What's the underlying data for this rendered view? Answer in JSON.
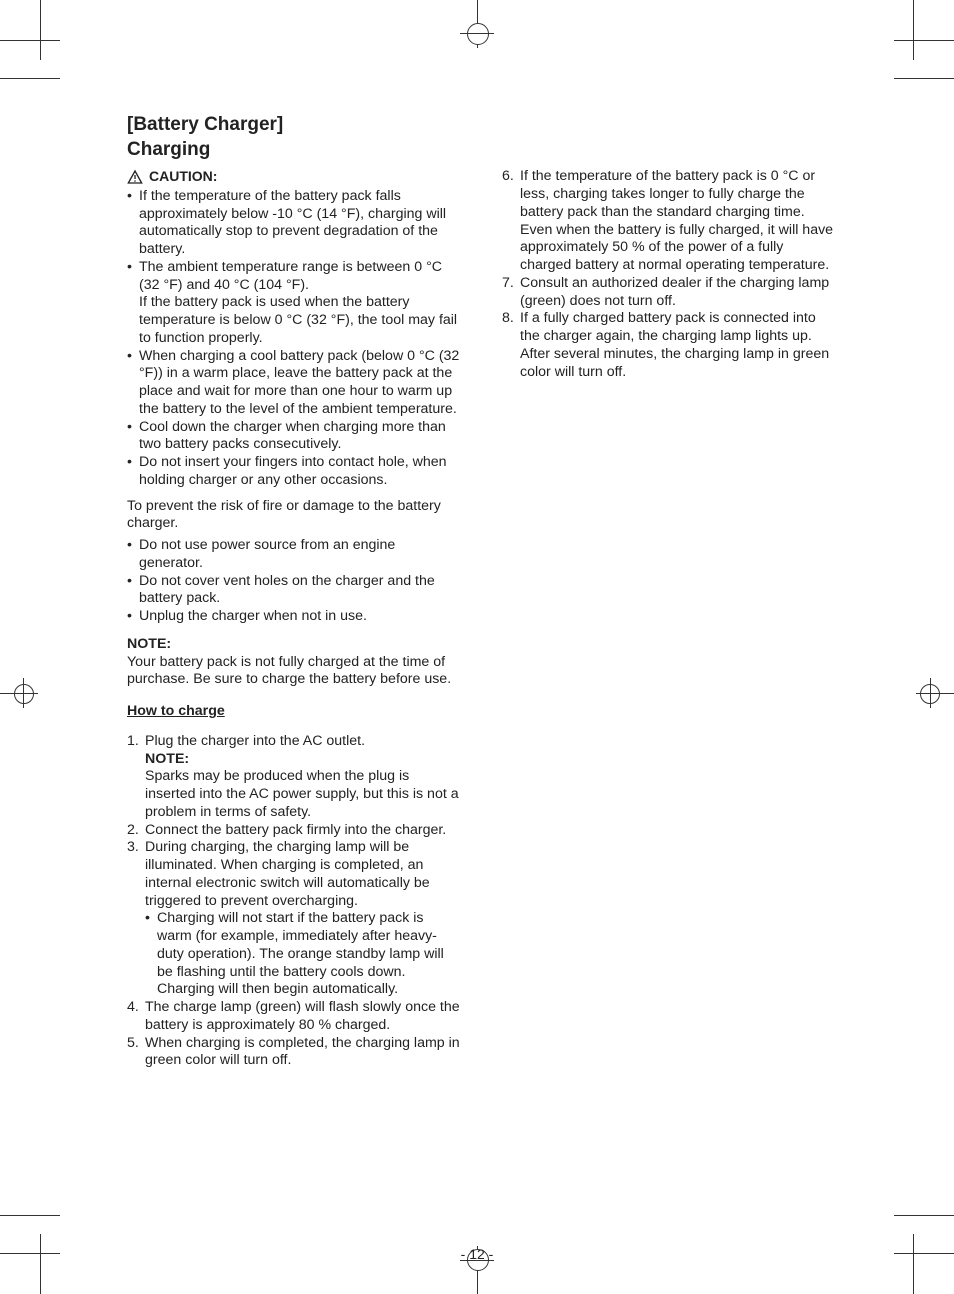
{
  "page_number": "- 12 -",
  "heading": "[Battery Charger]\nCharging",
  "caution_label": "CAUTION:",
  "caution_bullets": [
    "If the temperature of the battery pack falls approximately below -10 °C (14 °F), charging will automatically stop to prevent degradation of the battery.",
    "The ambient temperature range is between 0 °C (32 °F) and 40 °C (104 °F).\nIf the battery pack is used when the battery temperature is below 0 °C (32 °F), the tool may fail to function properly.",
    "When charging a cool battery pack (below 0 °C (32 °F)) in a warm place, leave the battery pack at the place and wait for more than one hour to warm up the battery to the level of the ambient temperature.",
    "Cool down the charger when charging more than two battery packs consecutively.",
    "Do not insert your fingers into contact hole, when holding charger or any other occasions."
  ],
  "prevent_intro": "To prevent the risk of fire or damage to the battery charger.",
  "prevent_bullets": [
    "Do not use power source from an engine generator.",
    "Do not cover vent holes on the charger and the battery pack.",
    "Unplug the charger when not in use."
  ],
  "note_label": "NOTE:",
  "note_body": "Your battery pack is not fully charged at the time of purchase. Be sure to charge the battery before use.",
  "howto_label": "How to charge",
  "steps_col1": [
    {
      "text": "Plug the charger into the AC outlet.",
      "note_label": "NOTE:",
      "note_body": "Sparks may be produced when the plug is inserted into the AC power supply, but this is not a problem in terms of safety."
    },
    {
      "text": "Connect the battery pack firmly into the charger."
    },
    {
      "text": "During charging, the charging lamp will be illuminated. When charging is completed, an internal electronic switch will automatically be triggered to prevent overcharging.",
      "sub": [
        "Charging will not start if the battery pack is warm (for example, immediately after heavy-duty operation). The orange standby lamp will be flashing until the battery cools down. Charging will then begin automatically."
      ]
    },
    {
      "text": "The charge lamp (green) will flash slowly once the battery is approximately 80 % charged."
    },
    {
      "text": "When charging is completed, the charging lamp in green color will turn off."
    }
  ],
  "steps_col2": [
    {
      "text": "If the temperature of the battery pack is 0 °C or less, charging takes longer to fully charge the battery pack than the standard charging time. Even when the battery is fully charged, it will have approximately 50 % of the power of a fully charged battery at normal operating temperature."
    },
    {
      "text": "Consult an authorized dealer if the charging lamp (green) does not turn off."
    },
    {
      "text": "If a fully charged battery pack is connected into the charger again, the charging lamp lights up. After several minutes, the charging lamp in green color will turn off."
    }
  ],
  "colors": {
    "text": "#222222",
    "background": "#ffffff",
    "marks": "#333333"
  }
}
